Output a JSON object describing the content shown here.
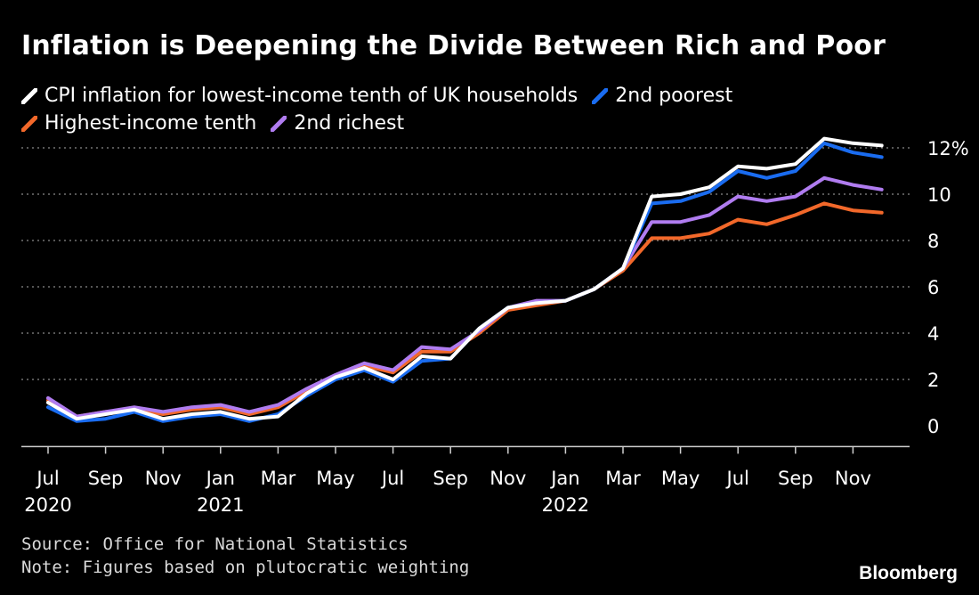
{
  "title": "Inflation is Deepening the Divide Between Rich and Poor",
  "legend": [
    {
      "name": "CPI inflation for lowest-income tenth of UK households",
      "color": "#ffffff"
    },
    {
      "name": "2nd poorest",
      "color": "#1a6cf0"
    },
    {
      "name": "Highest-income tenth",
      "color": "#f2682a"
    },
    {
      "name": "2nd richest",
      "color": "#b07cf0"
    }
  ],
  "source": "Source: Office for National Statistics",
  "note": "Note: Figures based on plutocratic weighting",
  "brand": "Bloomberg",
  "chart_data": {
    "type": "line",
    "title": "Inflation is Deepening the Divide Between Rich and Poor",
    "ylim": [
      -1,
      12.5
    ],
    "yticks": [
      0,
      2,
      4,
      6,
      8,
      10,
      12
    ],
    "ytick_labels": [
      "0",
      "2",
      "4",
      "6",
      "8",
      "10",
      "12%"
    ],
    "grid": true,
    "x": [
      "Jul 2020",
      "Aug 2020",
      "Sep 2020",
      "Oct 2020",
      "Nov 2020",
      "Dec 2020",
      "Jan 2021",
      "Feb 2021",
      "Mar 2021",
      "Apr 2021",
      "May 2021",
      "Jun 2021",
      "Jul 2021",
      "Aug 2021",
      "Sep 2021",
      "Oct 2021",
      "Nov 2021",
      "Dec 2021",
      "Jan 2022",
      "Feb 2022",
      "Mar 2022",
      "Apr 2022",
      "May 2022",
      "Jun 2022",
      "Jul 2022",
      "Aug 2022",
      "Sep 2022",
      "Oct 2022",
      "Nov 2022",
      "Dec 2022"
    ],
    "xtick_labels": [
      {
        "index": 0,
        "month": "Jul",
        "year": "2020"
      },
      {
        "index": 2,
        "month": "Sep",
        "year": ""
      },
      {
        "index": 4,
        "month": "Nov",
        "year": ""
      },
      {
        "index": 6,
        "month": "Jan",
        "year": "2021"
      },
      {
        "index": 8,
        "month": "Mar",
        "year": ""
      },
      {
        "index": 10,
        "month": "May",
        "year": ""
      },
      {
        "index": 12,
        "month": "Jul",
        "year": ""
      },
      {
        "index": 14,
        "month": "Sep",
        "year": ""
      },
      {
        "index": 16,
        "month": "Nov",
        "year": ""
      },
      {
        "index": 18,
        "month": "Jan",
        "year": "2022"
      },
      {
        "index": 20,
        "month": "Mar",
        "year": ""
      },
      {
        "index": 22,
        "month": "May",
        "year": ""
      },
      {
        "index": 24,
        "month": "Jul",
        "year": ""
      },
      {
        "index": 26,
        "month": "Sep",
        "year": ""
      },
      {
        "index": 28,
        "month": "Nov",
        "year": ""
      }
    ],
    "series": [
      {
        "name": "Highest-income tenth",
        "color": "#f2682a",
        "values": [
          1.1,
          0.4,
          0.6,
          0.7,
          0.5,
          0.7,
          0.8,
          0.5,
          0.8,
          1.5,
          2.1,
          2.6,
          2.3,
          3.2,
          3.2,
          4.0,
          5.0,
          5.2,
          5.4,
          5.9,
          6.7,
          8.1,
          8.1,
          8.3,
          8.9,
          8.7,
          9.1,
          9.6,
          9.3,
          9.2
        ]
      },
      {
        "name": "2nd richest",
        "color": "#b07cf0",
        "values": [
          1.2,
          0.4,
          0.6,
          0.8,
          0.6,
          0.8,
          0.9,
          0.6,
          0.9,
          1.6,
          2.2,
          2.7,
          2.4,
          3.4,
          3.3,
          4.1,
          5.1,
          5.4,
          5.4,
          5.9,
          6.8,
          8.8,
          8.8,
          9.1,
          9.9,
          9.7,
          9.9,
          10.7,
          10.4,
          10.2
        ]
      },
      {
        "name": "2nd poorest",
        "color": "#1a6cf0",
        "values": [
          0.8,
          0.2,
          0.3,
          0.6,
          0.2,
          0.4,
          0.5,
          0.2,
          0.5,
          1.3,
          2.0,
          2.4,
          1.9,
          2.8,
          2.9,
          4.2,
          5.1,
          5.3,
          5.4,
          5.9,
          6.8,
          9.6,
          9.7,
          10.1,
          11.0,
          10.7,
          11.0,
          12.2,
          11.8,
          11.6
        ]
      },
      {
        "name": "CPI inflation for lowest-income tenth of UK households",
        "color": "#ffffff",
        "values": [
          1.0,
          0.3,
          0.5,
          0.7,
          0.3,
          0.5,
          0.6,
          0.3,
          0.4,
          1.4,
          2.1,
          2.5,
          2.0,
          3.0,
          2.9,
          4.2,
          5.1,
          5.3,
          5.4,
          5.9,
          6.8,
          9.9,
          10.0,
          10.3,
          11.2,
          11.1,
          11.3,
          12.4,
          12.2,
          12.1
        ]
      }
    ]
  }
}
